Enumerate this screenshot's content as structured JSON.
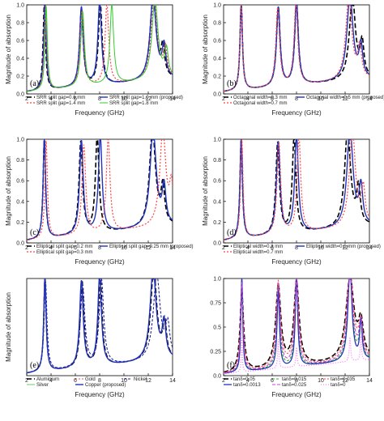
{
  "chart_data": [
    {
      "type": "line",
      "panel_label": "(a)",
      "xlabel": "Frequency (GHz)",
      "ylabel": "Magnitude of absorption",
      "xlim": [
        2,
        14
      ],
      "ylim": [
        0.0,
        1.0
      ],
      "xticks": [
        2,
        4,
        6,
        8,
        10,
        12,
        14
      ],
      "yticks": [
        0.0,
        0.2,
        0.4,
        0.6,
        0.8,
        1.0
      ],
      "legend_position": "bottom",
      "series": [
        {
          "name": "SRR split gap=0.6 mm",
          "color": "#000000",
          "dash": "6,3",
          "width": 1.6,
          "peaks": [
            [
              3.45,
              0.97,
              0.12
            ],
            [
              6.5,
              0.87,
              0.18
            ],
            [
              8.05,
              0.92,
              0.18
            ],
            [
              12.4,
              0.94,
              0.3
            ],
            [
              13.2,
              0.33,
              0.18
            ]
          ]
        },
        {
          "name": "SRR split gap=1.0 mm (proposed)",
          "color": "#2233bb",
          "dash": "",
          "width": 1.4,
          "peaks": [
            [
              3.5,
              0.98,
              0.12
            ],
            [
              6.5,
              0.89,
              0.18
            ],
            [
              8.0,
              0.93,
              0.18
            ],
            [
              12.4,
              0.95,
              0.3
            ],
            [
              13.3,
              0.35,
              0.18
            ]
          ]
        },
        {
          "name": "SRR split gap=1.4 mm",
          "color": "#ff4444",
          "dash": "2,2",
          "width": 1.2,
          "peaks": [
            [
              3.55,
              0.95,
              0.12
            ],
            [
              6.55,
              0.85,
              0.18
            ],
            [
              8.6,
              0.9,
              0.18
            ],
            [
              12.5,
              0.92,
              0.3
            ],
            [
              13.4,
              0.32,
              0.18
            ]
          ]
        },
        {
          "name": "SRR split gap=1.8 mm",
          "color": "#33cc33",
          "dash": "",
          "width": 1.0,
          "peaks": [
            [
              3.6,
              0.94,
              0.12
            ],
            [
              6.6,
              0.84,
              0.18
            ],
            [
              9.0,
              0.89,
              0.18
            ],
            [
              12.55,
              0.91,
              0.3
            ],
            [
              13.5,
              0.31,
              0.18
            ]
          ]
        }
      ]
    },
    {
      "type": "line",
      "panel_label": "(b)",
      "xlabel": "Frequency (GHz)",
      "ylabel": "Magnitude of absorption",
      "xlim": [
        2,
        14
      ],
      "ylim": [
        0.0,
        1.0
      ],
      "xticks": [
        2,
        4,
        6,
        8,
        10,
        12,
        14
      ],
      "yticks": [
        0.0,
        0.2,
        0.4,
        0.6,
        0.8,
        1.0
      ],
      "legend_position": "bottom",
      "series": [
        {
          "name": "Octagonal width=0.3 mm",
          "color": "#000000",
          "dash": "6,3",
          "width": 1.6,
          "peaks": [
            [
              3.45,
              0.98,
              0.12
            ],
            [
              6.5,
              0.89,
              0.18
            ],
            [
              8.0,
              0.93,
              0.18
            ],
            [
              12.6,
              0.93,
              0.3
            ],
            [
              13.4,
              0.38,
              0.18
            ]
          ]
        },
        {
          "name": "Octagonal width=0.5 mm (proposed)",
          "color": "#2233bb",
          "dash": "",
          "width": 1.4,
          "peaks": [
            [
              3.45,
              0.98,
              0.12
            ],
            [
              6.5,
              0.89,
              0.18
            ],
            [
              8.0,
              0.93,
              0.18
            ],
            [
              12.4,
              0.95,
              0.3
            ],
            [
              13.3,
              0.36,
              0.18
            ]
          ]
        },
        {
          "name": "Octagonal width=0.7 mm",
          "color": "#ff4444",
          "dash": "2,2",
          "width": 1.2,
          "peaks": [
            [
              3.45,
              0.97,
              0.12
            ],
            [
              6.45,
              0.88,
              0.18
            ],
            [
              7.95,
              0.92,
              0.18
            ],
            [
              12.3,
              0.94,
              0.3
            ],
            [
              13.2,
              0.35,
              0.18
            ]
          ]
        }
      ]
    },
    {
      "type": "line",
      "panel_label": "(c)",
      "xlabel": "Frequency (GHz)",
      "ylabel": "Magnitude of absorption",
      "xlim": [
        2,
        14
      ],
      "ylim": [
        0.0,
        1.0
      ],
      "xticks": [
        2,
        4,
        6,
        8,
        10,
        12,
        14
      ],
      "yticks": [
        0.0,
        0.2,
        0.4,
        0.6,
        0.8,
        1.0
      ],
      "legend_position": "bottom",
      "series": [
        {
          "name": "Elliptical split gap=0.2 mm",
          "color": "#000000",
          "dash": "6,3",
          "width": 1.6,
          "peaks": [
            [
              3.45,
              0.97,
              0.12
            ],
            [
              6.45,
              0.89,
              0.18
            ],
            [
              7.8,
              0.93,
              0.18
            ],
            [
              12.35,
              0.94,
              0.3
            ],
            [
              13.2,
              0.35,
              0.18
            ]
          ]
        },
        {
          "name": "Elliptical split gap=0.25 mm (proposed)",
          "color": "#2233bb",
          "dash": "",
          "width": 1.4,
          "peaks": [
            [
              3.45,
              0.98,
              0.12
            ],
            [
              6.5,
              0.9,
              0.18
            ],
            [
              8.05,
              0.93,
              0.18
            ],
            [
              12.4,
              0.95,
              0.3
            ],
            [
              13.3,
              0.36,
              0.18
            ]
          ]
        },
        {
          "name": "Elliptical split gap=0.3 mm",
          "color": "#ff4444",
          "dash": "2,2",
          "width": 1.2,
          "peaks": [
            [
              3.6,
              0.94,
              0.12
            ],
            [
              6.7,
              0.86,
              0.18
            ],
            [
              8.7,
              0.9,
              0.18
            ],
            [
              13.2,
              0.92,
              0.3
            ],
            [
              13.9,
              0.35,
              0.18
            ]
          ]
        }
      ]
    },
    {
      "type": "line",
      "panel_label": "(d)",
      "xlabel": "Frequency (GHz)",
      "ylabel": "Magnitude of absorption",
      "xlim": [
        2,
        14
      ],
      "ylim": [
        0.0,
        1.0
      ],
      "xticks": [
        2,
        4,
        6,
        8,
        10,
        12,
        14
      ],
      "yticks": [
        0.0,
        0.2,
        0.4,
        0.6,
        0.8,
        1.0
      ],
      "legend_position": "bottom",
      "series": [
        {
          "name": "Elliptical width=0.3 mm",
          "color": "#000000",
          "dash": "6,3",
          "width": 1.6,
          "peaks": [
            [
              3.45,
              0.97,
              0.12
            ],
            [
              6.45,
              0.88,
              0.18
            ],
            [
              7.8,
              0.92,
              0.18
            ],
            [
              12.2,
              0.93,
              0.3
            ],
            [
              13.1,
              0.35,
              0.18
            ]
          ]
        },
        {
          "name": "Elliptical width=0.5 mm (proposed)",
          "color": "#2233bb",
          "dash": "",
          "width": 1.4,
          "peaks": [
            [
              3.45,
              0.98,
              0.12
            ],
            [
              6.5,
              0.89,
              0.18
            ],
            [
              8.0,
              0.93,
              0.18
            ],
            [
              12.4,
              0.95,
              0.3
            ],
            [
              13.3,
              0.36,
              0.18
            ]
          ]
        },
        {
          "name": "Elliptical width=0.7 mm",
          "color": "#ff4444",
          "dash": "2,2",
          "width": 1.2,
          "peaks": [
            [
              3.5,
              0.96,
              0.12
            ],
            [
              6.55,
              0.88,
              0.18
            ],
            [
              8.2,
              0.92,
              0.18
            ],
            [
              12.6,
              0.93,
              0.3
            ],
            [
              13.5,
              0.34,
              0.18
            ]
          ]
        }
      ]
    },
    {
      "type": "line",
      "panel_label": "(e)",
      "xlabel": "Frequency (GHz)",
      "ylabel": "Magnitude of absorption",
      "xlim": [
        2,
        14
      ],
      "ylim": [
        0.0,
        1.0
      ],
      "xticks": [
        2,
        4,
        6,
        8,
        10,
        12,
        14
      ],
      "yticks": [],
      "legend_position": "bottom",
      "series": [
        {
          "name": "Aluminium",
          "color": "#000000",
          "dash": "6,3",
          "width": 1.5,
          "peaks": [
            [
              3.5,
              0.97,
              0.12
            ],
            [
              6.55,
              0.89,
              0.18
            ],
            [
              8.05,
              0.93,
              0.18
            ],
            [
              12.45,
              0.94,
              0.3
            ],
            [
              13.35,
              0.36,
              0.18
            ]
          ]
        },
        {
          "name": "Gold",
          "color": "#ff4444",
          "dash": "2,2",
          "width": 1.1,
          "peaks": [
            [
              3.5,
              0.97,
              0.12
            ],
            [
              6.5,
              0.89,
              0.18
            ],
            [
              8.0,
              0.93,
              0.18
            ],
            [
              12.4,
              0.94,
              0.3
            ],
            [
              13.3,
              0.36,
              0.18
            ]
          ]
        },
        {
          "name": "Nickel",
          "color": "#2222aa",
          "dash": "3,2",
          "width": 1.1,
          "peaks": [
            [
              3.55,
              0.92,
              0.14
            ],
            [
              6.6,
              0.84,
              0.22
            ],
            [
              8.15,
              0.88,
              0.22
            ],
            [
              12.7,
              0.88,
              0.34
            ],
            [
              13.6,
              0.33,
              0.2
            ]
          ]
        },
        {
          "name": "Silver",
          "color": "#66cc66",
          "dash": "",
          "width": 1.0,
          "peaks": [
            [
              3.5,
              0.97,
              0.12
            ],
            [
              6.5,
              0.89,
              0.18
            ],
            [
              8.0,
              0.93,
              0.18
            ],
            [
              12.4,
              0.95,
              0.3
            ],
            [
              13.3,
              0.36,
              0.18
            ]
          ]
        },
        {
          "name": "Copper (proposed)",
          "color": "#2233bb",
          "dash": "",
          "width": 1.4,
          "peaks": [
            [
              3.5,
              0.98,
              0.12
            ],
            [
              6.5,
              0.89,
              0.18
            ],
            [
              8.0,
              0.93,
              0.18
            ],
            [
              12.4,
              0.95,
              0.3
            ],
            [
              13.3,
              0.36,
              0.18
            ]
          ]
        }
      ]
    },
    {
      "type": "line",
      "panel_label": "(f)",
      "xlabel": "Frequency (GHz)",
      "ylabel": "",
      "xlim": [
        2,
        14
      ],
      "ylim": [
        0.0,
        1.0
      ],
      "xticks": [
        2,
        4,
        6,
        8,
        10,
        12,
        14
      ],
      "yticks": [
        0.0,
        0.25,
        0.5,
        0.75,
        1.0
      ],
      "legend_position": "bottom",
      "series": [
        {
          "name": "tanδ=0.05",
          "color": "#000000",
          "dash": "6,3",
          "width": 1.5,
          "peaks": [
            [
              3.5,
              0.82,
              0.18
            ],
            [
              6.5,
              0.84,
              0.26
            ],
            [
              8.0,
              0.86,
              0.26
            ],
            [
              12.4,
              0.86,
              0.4
            ],
            [
              13.3,
              0.35,
              0.24
            ]
          ]
        },
        {
          "name": "tanδ=0.015",
          "color": "#33aa33",
          "dash": "3,2",
          "width": 1.1,
          "peaks": [
            [
              3.5,
              0.95,
              0.1
            ],
            [
              6.5,
              0.86,
              0.15
            ],
            [
              8.0,
              0.9,
              0.15
            ],
            [
              12.4,
              0.92,
              0.24
            ],
            [
              13.3,
              0.38,
              0.15
            ]
          ]
        },
        {
          "name": "tanδ=0.035",
          "color": "#ff4444",
          "dash": "2,2",
          "width": 1.1,
          "peaks": [
            [
              3.5,
              0.88,
              0.15
            ],
            [
              6.5,
              0.88,
              0.22
            ],
            [
              8.0,
              0.9,
              0.22
            ],
            [
              12.4,
              0.92,
              0.34
            ],
            [
              13.3,
              0.36,
              0.2
            ]
          ]
        },
        {
          "name": "tanδ=0.0013",
          "color": "#2233bb",
          "dash": "",
          "width": 1.3,
          "peaks": [
            [
              3.5,
              0.98,
              0.09
            ],
            [
              6.5,
              0.8,
              0.12
            ],
            [
              8.0,
              0.93,
              0.12
            ],
            [
              12.4,
              0.96,
              0.2
            ],
            [
              13.3,
              0.4,
              0.12
            ]
          ]
        },
        {
          "name": "tanδ=0.025",
          "color": "#cc44cc",
          "dash": "4,2",
          "width": 1.1,
          "peaks": [
            [
              3.5,
              0.92,
              0.12
            ],
            [
              6.5,
              0.87,
              0.18
            ],
            [
              8.0,
              0.9,
              0.18
            ],
            [
              12.4,
              0.93,
              0.28
            ],
            [
              13.3,
              0.37,
              0.18
            ]
          ]
        },
        {
          "name": "tanδ=0",
          "color": "#ff66ff",
          "dash": "1,2",
          "width": 1.1,
          "peaks": [
            [
              3.5,
              0.35,
              0.05
            ],
            [
              6.5,
              0.3,
              0.06
            ],
            [
              8.0,
              0.2,
              0.06
            ],
            [
              12.4,
              0.25,
              0.07
            ],
            [
              13.3,
              0.25,
              0.06
            ]
          ]
        }
      ]
    }
  ]
}
